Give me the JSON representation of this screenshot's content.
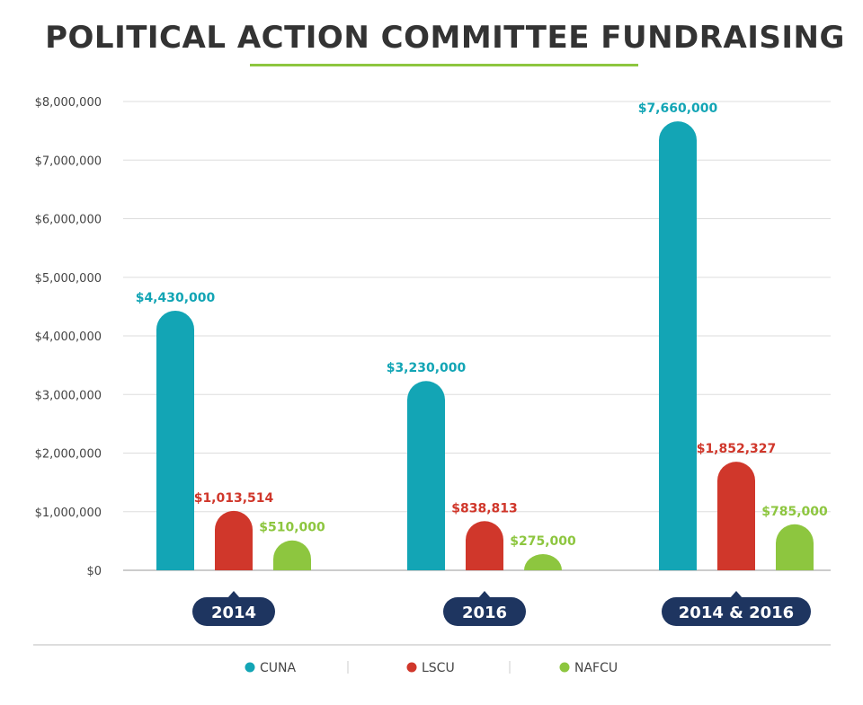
{
  "title": "POLITICAL ACTION COMMITTEE FUNDRAISING",
  "colors": {
    "CUNA": "#13a5b5",
    "LSCU": "#d0372b",
    "NAFCU": "#8dc63f",
    "category_badge": "#1e3560",
    "accent": "#8dc63f"
  },
  "chart_data": {
    "type": "bar",
    "title": "POLITICAL ACTION COMMITTEE FUNDRAISING",
    "categories": [
      "2014",
      "2016",
      "2014 & 2016"
    ],
    "series": [
      {
        "name": "CUNA",
        "values": [
          4430000,
          3230000,
          7660000
        ],
        "labels": [
          "$4,430,000",
          "$3,230,000",
          "$7,660,000"
        ]
      },
      {
        "name": "LSCU",
        "values": [
          1013514,
          838813,
          1852327
        ],
        "labels": [
          "$1,013,514",
          "$838,813",
          "$1,852,327"
        ]
      },
      {
        "name": "NAFCU",
        "values": [
          510000,
          275000,
          785000
        ],
        "labels": [
          "$510,000",
          "$275,000",
          "$785,000"
        ]
      }
    ],
    "ylim": [
      0,
      8000000
    ],
    "yticks": [
      0,
      1000000,
      2000000,
      3000000,
      4000000,
      5000000,
      6000000,
      7000000,
      8000000
    ],
    "ytick_labels": [
      "$0",
      "$1,000,000",
      "$2,000,000",
      "$3,000,000",
      "$4,000,000",
      "$5,000,000",
      "$6,000,000",
      "$7,000,000",
      "$8,000,000"
    ],
    "grid": true,
    "legend_position": "bottom-center"
  }
}
